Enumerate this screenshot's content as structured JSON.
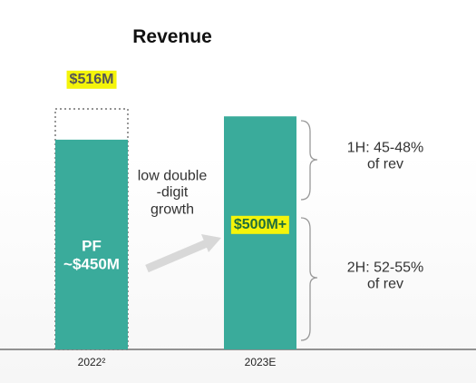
{
  "chart_data": {
    "type": "bar",
    "title": "Revenue",
    "categories": [
      "2022²",
      "2023E"
    ],
    "values": [
      450,
      500
    ],
    "value_labels": [
      "PF\n~$450M",
      "$500M+"
    ],
    "color": "#3aab9b",
    "outline": {
      "value": 516,
      "value_label": "$516M"
    },
    "annotations": [
      "low double\n-digit\ngrowth",
      "1H: 45-48% of rev",
      "2H: 52-55% of rev"
    ]
  }
}
